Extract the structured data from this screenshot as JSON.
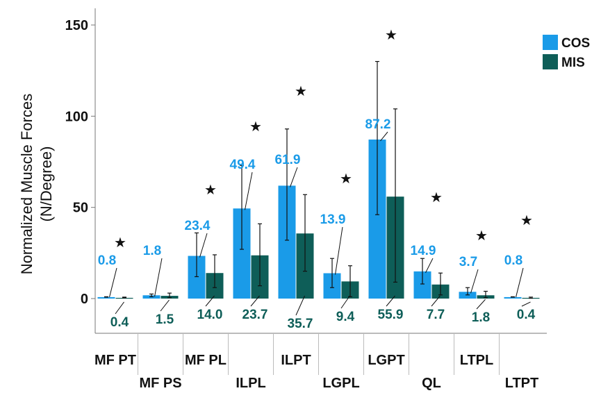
{
  "chart_data": {
    "type": "bar",
    "ylabel_lines": [
      "Normalized Muscle Forces",
      "(N/Degree)"
    ],
    "ylim": [
      -16,
      160
    ],
    "yticks": [
      0,
      50,
      100,
      150
    ],
    "categories": [
      "MF PT",
      "MF PS",
      "MF PL",
      "ILPL",
      "ILPT",
      "LGPL",
      "LGPT",
      "QL",
      "LTPL",
      "LTPT"
    ],
    "series": [
      {
        "name": "COS",
        "color": "#1a9be8",
        "values": [
          0.8,
          1.8,
          23.4,
          49.4,
          61.9,
          13.9,
          87.2,
          14.9,
          3.7,
          0.8
        ],
        "labels": [
          "0.8",
          "1.8",
          "23.4",
          "49.4",
          "61.9",
          "13.9",
          "87.2",
          "14.9",
          "3.7",
          "0.8"
        ],
        "err_low": [
          0.8,
          1.0,
          12,
          27,
          32,
          6,
          46,
          8,
          2.0,
          0.8
        ],
        "err_high": [
          1.0,
          2.5,
          36,
          73,
          93,
          22,
          130,
          22,
          6,
          1.0
        ]
      },
      {
        "name": "MIS",
        "color": "#0e5e58",
        "values": [
          0.4,
          1.5,
          14.0,
          23.7,
          35.7,
          9.4,
          55.9,
          7.7,
          1.8,
          0.4
        ],
        "labels": [
          "0.4",
          "1.5",
          "14.0",
          "23.7",
          "35.7",
          "9.4",
          "55.9",
          "7.7",
          "1.8",
          "0.4"
        ],
        "err_low": [
          0.4,
          0.5,
          6,
          7,
          15,
          1,
          9,
          2,
          0.5,
          0.2
        ],
        "err_high": [
          0.8,
          3,
          24,
          41,
          57,
          18,
          104,
          14,
          4,
          0.8
        ]
      }
    ],
    "significance_marker": "★",
    "significant": [
      true,
      false,
      true,
      true,
      true,
      true,
      true,
      true,
      true,
      true
    ],
    "legend_position": "top-right",
    "grid": false
  }
}
